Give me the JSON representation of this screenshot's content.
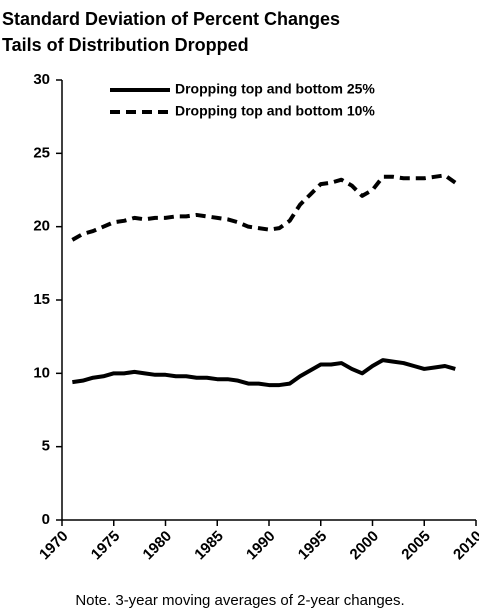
{
  "chart_data": {
    "type": "line",
    "title": "Standard Deviation of Percent Changes",
    "subtitle": "Tails of Distribution Dropped",
    "note": "Note. 3-year moving averages of 2-year changes.",
    "x": [
      1971,
      1972,
      1973,
      1974,
      1975,
      1976,
      1977,
      1978,
      1979,
      1980,
      1981,
      1982,
      1983,
      1984,
      1985,
      1986,
      1987,
      1988,
      1989,
      1990,
      1991,
      1992,
      1993,
      1994,
      1995,
      1996,
      1997,
      1998,
      1999,
      2000,
      2001,
      2002,
      2003,
      2004,
      2005,
      2006,
      2007,
      2008
    ],
    "series": [
      {
        "name": "Dropping top and bottom 25%",
        "color": "#000000",
        "line_style": "solid",
        "values": [
          9.4,
          9.5,
          9.7,
          9.8,
          10.0,
          10.0,
          10.1,
          10.0,
          9.9,
          9.9,
          9.8,
          9.8,
          9.7,
          9.7,
          9.6,
          9.6,
          9.5,
          9.3,
          9.3,
          9.2,
          9.2,
          9.3,
          9.8,
          10.2,
          10.6,
          10.6,
          10.7,
          10.3,
          10.0,
          10.5,
          10.9,
          10.8,
          10.7,
          10.5,
          10.3,
          10.4,
          10.5,
          10.3
        ]
      },
      {
        "name": "Dropping top and bottom 10%",
        "color": "#000000",
        "line_style": "dashed",
        "values": [
          19.1,
          19.5,
          19.7,
          20.0,
          20.3,
          20.4,
          20.6,
          20.5,
          20.6,
          20.6,
          20.7,
          20.7,
          20.8,
          20.7,
          20.6,
          20.5,
          20.3,
          20.0,
          19.9,
          19.8,
          19.9,
          20.4,
          21.5,
          22.2,
          22.9,
          23.0,
          23.2,
          22.8,
          22.1,
          22.5,
          23.4,
          23.4,
          23.3,
          23.3,
          23.3,
          23.4,
          23.5,
          23.0
        ]
      }
    ],
    "xlim": [
      1970,
      2010
    ],
    "xticks": [
      1970,
      1975,
      1980,
      1985,
      1990,
      1995,
      2000,
      2005,
      2010
    ],
    "ylim": [
      0,
      30
    ],
    "yticks": [
      0,
      5,
      10,
      15,
      20,
      25,
      30
    ],
    "grid": false,
    "legend": "top"
  }
}
